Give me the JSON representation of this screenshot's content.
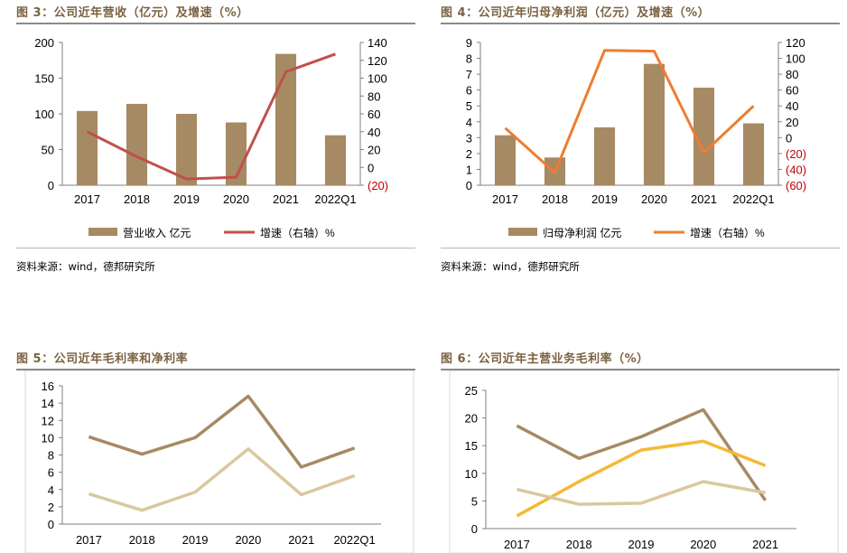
{
  "figures": [
    {
      "title": "图 3：公司近年营收（亿元）及增速（%）",
      "source": "资料来源：wind，德邦研究所",
      "chart_data": {
        "type": "bar",
        "categories": [
          "2017",
          "2018",
          "2019",
          "2020",
          "2021",
          "2022Q1"
        ],
        "left_axis": {
          "min": 0,
          "max": 200,
          "ticks": [
            0,
            50,
            100,
            150,
            200
          ],
          "tick_labels": [
            "0",
            "50",
            "100",
            "150",
            "200"
          ]
        },
        "right_axis": {
          "min": -20,
          "max": 140,
          "ticks": [
            -20,
            0,
            20,
            40,
            60,
            80,
            100,
            120,
            140
          ],
          "tick_labels": [
            "(20)",
            "0",
            "20",
            "40",
            "60",
            "80",
            "100",
            "120",
            "140"
          ],
          "negative_color": "#c00000"
        },
        "series": [
          {
            "name": "营业收入 亿元",
            "type": "bar",
            "axis": "left",
            "color": "#a68a63",
            "values": [
              104,
              114,
              100,
              88,
              184,
              70
            ]
          },
          {
            "name": "增速（右轴）%",
            "type": "line",
            "axis": "right",
            "color": "#c0504d",
            "values": [
              40,
              12,
              -13,
              -11,
              107,
              127
            ]
          }
        ],
        "legend_position": "bottom"
      }
    },
    {
      "title": "图 4：公司近年归母净利润（亿元）及增速（%）",
      "source": "资料来源：wind，德邦研究所",
      "chart_data": {
        "type": "bar",
        "categories": [
          "2017",
          "2018",
          "2019",
          "2020",
          "2021",
          "2022Q1"
        ],
        "left_axis": {
          "min": 0,
          "max": 9,
          "ticks": [
            0,
            1,
            2,
            3,
            4,
            5,
            6,
            7,
            8,
            9
          ],
          "tick_labels": [
            "0",
            "1",
            "2",
            "3",
            "4",
            "5",
            "6",
            "7",
            "8",
            "9"
          ]
        },
        "right_axis": {
          "min": -60,
          "max": 120,
          "ticks": [
            -60,
            -40,
            -20,
            0,
            20,
            40,
            60,
            80,
            100,
            120
          ],
          "tick_labels": [
            "(60)",
            "(40)",
            "(20)",
            "0",
            "20",
            "40",
            "60",
            "80",
            "100",
            "120"
          ],
          "negative_color": "#c00000"
        },
        "series": [
          {
            "name": "归母净利润 亿元",
            "type": "bar",
            "axis": "left",
            "color": "#a68a63",
            "values": [
              3.15,
              1.75,
              3.65,
              7.65,
              6.15,
              3.9
            ]
          },
          {
            "name": "增速（右轴）%",
            "type": "line",
            "axis": "right",
            "color": "#ed7d31",
            "values": [
              12,
              -44,
              110,
              109,
              -19,
              40
            ]
          }
        ],
        "legend_position": "bottom"
      }
    },
    {
      "title": "图 5：公司近年毛利率和净利率",
      "chart_data": {
        "type": "line",
        "categories": [
          "2017",
          "2018",
          "2019",
          "2020",
          "2021",
          "2022Q1"
        ],
        "y_axis": {
          "min": 0,
          "max": 16,
          "ticks": [
            0,
            2,
            4,
            6,
            8,
            10,
            12,
            14,
            16
          ],
          "tick_labels": [
            "0",
            "2",
            "4",
            "6",
            "8",
            "10",
            "12",
            "14",
            "16"
          ]
        },
        "series": [
          {
            "color": "#a68a63",
            "values": [
              10.1,
              8.1,
              10.0,
              14.8,
              6.6,
              8.8
            ]
          },
          {
            "color": "#d9c8a0",
            "values": [
              3.5,
              1.6,
              3.7,
              8.7,
              3.4,
              5.6
            ]
          }
        ]
      }
    },
    {
      "title": "图 6：公司近年主营业务毛利率（%）",
      "chart_data": {
        "type": "line",
        "categories": [
          "2017",
          "2018",
          "2019",
          "2020",
          "2021"
        ],
        "y_axis": {
          "min": 0,
          "max": 25,
          "ticks": [
            0,
            5,
            10,
            15,
            20,
            25
          ],
          "tick_labels": [
            "0",
            "5",
            "10",
            "15",
            "20",
            "25"
          ]
        },
        "series": [
          {
            "color": "#a68a63",
            "values": [
              18.6,
              12.7,
              16.6,
              21.5,
              5.1
            ]
          },
          {
            "color": "#f5b935",
            "values": [
              2.3,
              8.5,
              14.2,
              15.8,
              11.4
            ]
          },
          {
            "color": "#d9c8a0",
            "values": [
              7.1,
              4.4,
              4.6,
              8.5,
              6.5
            ]
          }
        ]
      }
    }
  ]
}
